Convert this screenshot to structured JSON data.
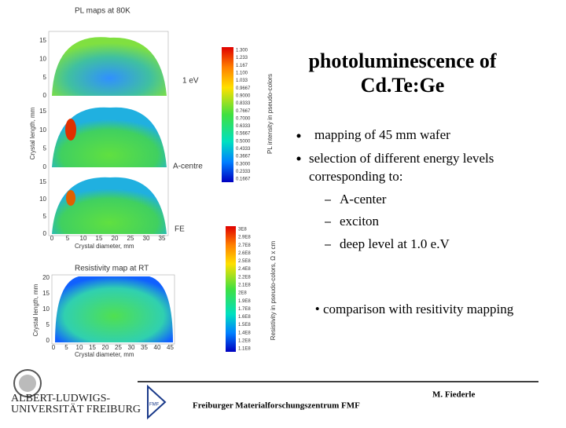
{
  "slide": {
    "title": [
      "photoluminescence of",
      "Cd.Te:Ge"
    ],
    "bullets": [
      "mapping of 45 mm wafer",
      "selection of different energy levels corresponding to:"
    ],
    "sub_bullets": [
      "A-center",
      "exciton",
      "deep level at 1.0 e.V"
    ],
    "comparison": "• comparison with resitivity mapping"
  },
  "pl_maps": {
    "title": "PL maps at 80K",
    "maps": [
      {
        "label": "1 eV",
        "yticks": [
          "15",
          "10",
          "5",
          "0"
        ]
      },
      {
        "label": "A-centre",
        "yticks": [
          "15",
          "10",
          "5",
          "0"
        ]
      },
      {
        "label": "FE",
        "yticks": [
          "15",
          "10",
          "5",
          "0"
        ]
      }
    ],
    "xticks": [
      "0",
      "5",
      "10",
      "15",
      "20",
      "25",
      "30",
      "35"
    ],
    "x_label": "Crystal diameter, mm",
    "y_label": "Crystal length, mm",
    "colorbar_labels": [
      "1.300",
      "1.233",
      "1.167",
      "1.100",
      "1.033",
      "0.9667",
      "0.9000",
      "0.8333",
      "0.7667",
      "0.7000",
      "0.6333",
      "0.5667",
      "0.5000",
      "0.4333",
      "0.3667",
      "0.3000",
      "0.2333",
      "0.1667"
    ],
    "colorbar_title": "PL intensity in pseudo-colors"
  },
  "resistivity_map": {
    "title": "Resistivity map at RT",
    "yticks": [
      "20",
      "15",
      "10",
      "5",
      "0"
    ],
    "xticks": [
      "0",
      "5",
      "10",
      "15",
      "20",
      "25",
      "30",
      "35",
      "40",
      "45"
    ],
    "x_label": "Crystal diameter, mm",
    "y_label": "Crystal length, mm",
    "colorbar_labels": [
      "3E8",
      "2.9E8",
      "2.7E8",
      "2.6E8",
      "2.5E8",
      "2.4E8",
      "2.2E8",
      "2.1E8",
      "2E8",
      "1.9E8",
      "1.7E8",
      "1.6E8",
      "1.5E8",
      "1.4E8",
      "1.2E8",
      "1.1E8"
    ],
    "colorbar_title": "Resistivity in pseudo-colors, Ω x cm"
  },
  "footer": {
    "university": [
      "ALBERT-LUDWIGS-",
      "UNIVERSITÄT FREIBURG"
    ],
    "logo": "FMF",
    "center": "Freiburger Materialforschungszentrum FMF",
    "author": "M. Fiederle"
  }
}
